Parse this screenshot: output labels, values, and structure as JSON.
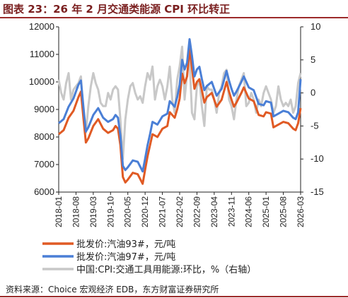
{
  "figure": {
    "title": "图表 23：26 年 2 月交通类能源 CPI 环比转正",
    "source": "资料来源：Choice 宏观经济 EDB，东方财富证券研究所"
  },
  "colors": {
    "s93": "#e05a24",
    "s97": "#4a7fd6",
    "cpi": "#c8c8c8",
    "accent": "#9c2a2a"
  },
  "chart_data": {
    "type": "line",
    "title": "",
    "xlabel": "",
    "ylabel": "",
    "ylim": [
      6000,
      12000
    ],
    "y2lim": [
      -15,
      10
    ],
    "yticks": [
      6000,
      7000,
      8000,
      9000,
      10000,
      11000,
      12000
    ],
    "y2ticks": [
      10,
      5,
      0,
      -5,
      -10,
      -15
    ],
    "xrange": [
      "2018-01",
      "2026-03"
    ],
    "xticks": [
      "2018-01",
      "2018-08",
      "2019-03",
      "2019-10",
      "2020-05",
      "2020-12",
      "2021-07",
      "2022-02",
      "2022-09",
      "2023-04",
      "2023-11",
      "2024-06",
      "2025-01",
      "2025-08",
      "2026-03"
    ],
    "grid": false,
    "legend": "bottom",
    "series": [
      {
        "name": "批发价:汽油93#，元/吨",
        "axis": "left",
        "points": [
          [
            "2018-01",
            8100
          ],
          [
            "2018-03",
            8250
          ],
          [
            "2018-05",
            8700
          ],
          [
            "2018-07",
            8950
          ],
          [
            "2018-09",
            9450
          ],
          [
            "2018-10",
            9650
          ],
          [
            "2018-11",
            8700
          ],
          [
            "2018-12",
            7800
          ],
          [
            "2019-01",
            7950
          ],
          [
            "2019-03",
            8400
          ],
          [
            "2019-05",
            8650
          ],
          [
            "2019-07",
            8300
          ],
          [
            "2019-09",
            8150
          ],
          [
            "2019-11",
            8250
          ],
          [
            "2019-12",
            8400
          ],
          [
            "2020-01",
            8300
          ],
          [
            "2020-02",
            7700
          ],
          [
            "2020-03",
            6550
          ],
          [
            "2020-04",
            6350
          ],
          [
            "2020-05",
            6450
          ],
          [
            "2020-07",
            6700
          ],
          [
            "2020-09",
            6650
          ],
          [
            "2020-11",
            6300
          ],
          [
            "2020-12",
            6800
          ],
          [
            "2021-01",
            7300
          ],
          [
            "2021-02",
            7700
          ],
          [
            "2021-03",
            8100
          ],
          [
            "2021-05",
            8000
          ],
          [
            "2021-07",
            8300
          ],
          [
            "2021-09",
            8400
          ],
          [
            "2021-10",
            8900
          ],
          [
            "2021-12",
            8700
          ],
          [
            "2022-01",
            9000
          ],
          [
            "2022-02",
            9400
          ],
          [
            "2022-03",
            10300
          ],
          [
            "2022-04",
            9950
          ],
          [
            "2022-05",
            10200
          ],
          [
            "2022-06",
            11200
          ],
          [
            "2022-07",
            10500
          ],
          [
            "2022-08",
            9750
          ],
          [
            "2022-09",
            10000
          ],
          [
            "2022-10",
            10100
          ],
          [
            "2022-11",
            9700
          ],
          [
            "2022-12",
            9250
          ],
          [
            "2023-01",
            9450
          ],
          [
            "2023-03",
            9600
          ],
          [
            "2023-05",
            9100
          ],
          [
            "2023-07",
            9350
          ],
          [
            "2023-09",
            10000
          ],
          [
            "2023-10",
            9650
          ],
          [
            "2023-11",
            9350
          ],
          [
            "2023-12",
            9100
          ],
          [
            "2024-01",
            9250
          ],
          [
            "2024-03",
            9600
          ],
          [
            "2024-04",
            9800
          ],
          [
            "2024-06",
            9400
          ],
          [
            "2024-08",
            9300
          ],
          [
            "2024-10",
            8800
          ],
          [
            "2024-12",
            8750
          ],
          [
            "2025-01",
            8900
          ],
          [
            "2025-03",
            8850
          ],
          [
            "2025-04",
            8350
          ],
          [
            "2025-06",
            8450
          ],
          [
            "2025-08",
            8550
          ],
          [
            "2025-10",
            8500
          ],
          [
            "2025-12",
            8300
          ],
          [
            "2026-01",
            8250
          ],
          [
            "2026-02",
            8500
          ],
          [
            "2026-03",
            9050
          ]
        ]
      },
      {
        "name": "批发价:汽油97#，元/吨",
        "axis": "left",
        "points": [
          [
            "2018-01",
            8500
          ],
          [
            "2018-03",
            8650
          ],
          [
            "2018-05",
            9100
          ],
          [
            "2018-07",
            9400
          ],
          [
            "2018-09",
            9900
          ],
          [
            "2018-10",
            10050
          ],
          [
            "2018-11",
            9100
          ],
          [
            "2018-12",
            8200
          ],
          [
            "2019-01",
            8350
          ],
          [
            "2019-03",
            8800
          ],
          [
            "2019-05",
            9050
          ],
          [
            "2019-07",
            8700
          ],
          [
            "2019-09",
            8550
          ],
          [
            "2019-11",
            8650
          ],
          [
            "2019-12",
            8800
          ],
          [
            "2020-01",
            8700
          ],
          [
            "2020-02",
            8050
          ],
          [
            "2020-03",
            6950
          ],
          [
            "2020-04",
            6800
          ],
          [
            "2020-05",
            6900
          ],
          [
            "2020-07",
            7150
          ],
          [
            "2020-09",
            7100
          ],
          [
            "2020-11",
            6750
          ],
          [
            "2020-12",
            7200
          ],
          [
            "2021-01",
            7700
          ],
          [
            "2021-02",
            8100
          ],
          [
            "2021-03",
            8550
          ],
          [
            "2021-05",
            8450
          ],
          [
            "2021-07",
            8750
          ],
          [
            "2021-09",
            8850
          ],
          [
            "2021-10",
            9300
          ],
          [
            "2021-12",
            9100
          ],
          [
            "2022-01",
            9450
          ],
          [
            "2022-02",
            9900
          ],
          [
            "2022-03",
            10800
          ],
          [
            "2022-04",
            10450
          ],
          [
            "2022-05",
            10700
          ],
          [
            "2022-06",
            11550
          ],
          [
            "2022-07",
            10950
          ],
          [
            "2022-08",
            10200
          ],
          [
            "2022-09",
            10450
          ],
          [
            "2022-10",
            10550
          ],
          [
            "2022-11",
            10100
          ],
          [
            "2022-12",
            9700
          ],
          [
            "2023-01",
            9850
          ],
          [
            "2023-03",
            10000
          ],
          [
            "2023-05",
            9500
          ],
          [
            "2023-07",
            9750
          ],
          [
            "2023-09",
            10400
          ],
          [
            "2023-10",
            10050
          ],
          [
            "2023-11",
            9750
          ],
          [
            "2023-12",
            9500
          ],
          [
            "2024-01",
            9650
          ],
          [
            "2024-03",
            10000
          ],
          [
            "2024-04",
            10200
          ],
          [
            "2024-06",
            9800
          ],
          [
            "2024-08",
            9700
          ],
          [
            "2024-10",
            9200
          ],
          [
            "2024-12",
            9150
          ],
          [
            "2025-01",
            9300
          ],
          [
            "2025-03",
            9250
          ],
          [
            "2025-04",
            8750
          ],
          [
            "2025-06",
            8850
          ],
          [
            "2025-08",
            8950
          ],
          [
            "2025-10",
            8900
          ],
          [
            "2025-12",
            8700
          ],
          [
            "2026-01",
            8650
          ],
          [
            "2026-02",
            8900
          ],
          [
            "2026-03",
            10100
          ]
        ]
      },
      {
        "name": "中国:CPI:交通工具用能源:环比，%（右轴）",
        "axis": "right",
        "points": [
          [
            "2018-01",
            2
          ],
          [
            "2018-02",
            0
          ],
          [
            "2018-03",
            -1
          ],
          [
            "2018-04",
            1.5
          ],
          [
            "2018-05",
            3
          ],
          [
            "2018-06",
            -1
          ],
          [
            "2018-07",
            0.5
          ],
          [
            "2018-08",
            1
          ],
          [
            "2018-09",
            1.5
          ],
          [
            "2018-10",
            2.5
          ],
          [
            "2018-11",
            -3
          ],
          [
            "2018-12",
            -6
          ],
          [
            "2019-01",
            -2
          ],
          [
            "2019-02",
            1
          ],
          [
            "2019-03",
            3
          ],
          [
            "2019-04",
            1.5
          ],
          [
            "2019-05",
            0.5
          ],
          [
            "2019-06",
            -1.5
          ],
          [
            "2019-07",
            -2
          ],
          [
            "2019-08",
            -2
          ],
          [
            "2019-09",
            0
          ],
          [
            "2019-10",
            -1
          ],
          [
            "2019-11",
            0.5
          ],
          [
            "2019-12",
            1
          ],
          [
            "2020-01",
            0.5
          ],
          [
            "2020-02",
            -4
          ],
          [
            "2020-03",
            -10
          ],
          [
            "2020-04",
            -4
          ],
          [
            "2020-05",
            -1
          ],
          [
            "2020-06",
            1
          ],
          [
            "2020-07",
            1.5
          ],
          [
            "2020-08",
            0
          ],
          [
            "2020-09",
            -1
          ],
          [
            "2020-10",
            -0.5
          ],
          [
            "2020-11",
            -1.5
          ],
          [
            "2020-12",
            1
          ],
          [
            "2021-01",
            3
          ],
          [
            "2021-02",
            2
          ],
          [
            "2021-03",
            4
          ],
          [
            "2021-04",
            -1
          ],
          [
            "2021-05",
            1
          ],
          [
            "2021-06",
            2
          ],
          [
            "2021-07",
            1
          ],
          [
            "2021-08",
            -1
          ],
          [
            "2021-09",
            1
          ],
          [
            "2021-10",
            4
          ],
          [
            "2021-11",
            -1
          ],
          [
            "2021-12",
            -3
          ],
          [
            "2022-01",
            2
          ],
          [
            "2022-02",
            4
          ],
          [
            "2022-03",
            7
          ],
          [
            "2022-04",
            -1
          ],
          [
            "2022-05",
            3
          ],
          [
            "2022-06",
            5
          ],
          [
            "2022-07",
            -3
          ],
          [
            "2022-08",
            -4
          ],
          [
            "2022-09",
            1
          ],
          [
            "2022-10",
            2
          ],
          [
            "2022-11",
            -2
          ],
          [
            "2022-12",
            -5
          ],
          [
            "2023-01",
            1
          ],
          [
            "2023-02",
            0.5
          ],
          [
            "2023-03",
            0.5
          ],
          [
            "2023-04",
            -1
          ],
          [
            "2023-05",
            -3
          ],
          [
            "2023-06",
            0
          ],
          [
            "2023-07",
            1
          ],
          [
            "2023-08",
            3
          ],
          [
            "2023-09",
            3.5
          ],
          [
            "2023-10",
            -1
          ],
          [
            "2023-11",
            -2
          ],
          [
            "2023-12",
            -4
          ],
          [
            "2024-01",
            -1
          ],
          [
            "2024-02",
            1
          ],
          [
            "2024-03",
            2
          ],
          [
            "2024-04",
            3
          ],
          [
            "2024-05",
            -2
          ],
          [
            "2024-06",
            -1.5
          ],
          [
            "2024-07",
            0
          ],
          [
            "2024-08",
            -1
          ],
          [
            "2024-09",
            -3
          ],
          [
            "2024-10",
            -1
          ],
          [
            "2024-11",
            -2
          ],
          [
            "2024-12",
            0
          ],
          [
            "2025-01",
            1
          ],
          [
            "2025-02",
            0
          ],
          [
            "2025-03",
            -1
          ],
          [
            "2025-04",
            -3
          ],
          [
            "2025-05",
            -2
          ],
          [
            "2025-06",
            1
          ],
          [
            "2025-07",
            -1
          ],
          [
            "2025-08",
            -2
          ],
          [
            "2025-09",
            -1.5
          ],
          [
            "2025-10",
            -2
          ],
          [
            "2025-11",
            -1
          ],
          [
            "2025-12",
            -3
          ],
          [
            "2026-01",
            -2
          ],
          [
            "2026-02",
            1.5
          ],
          [
            "2026-03",
            3
          ]
        ]
      }
    ]
  }
}
